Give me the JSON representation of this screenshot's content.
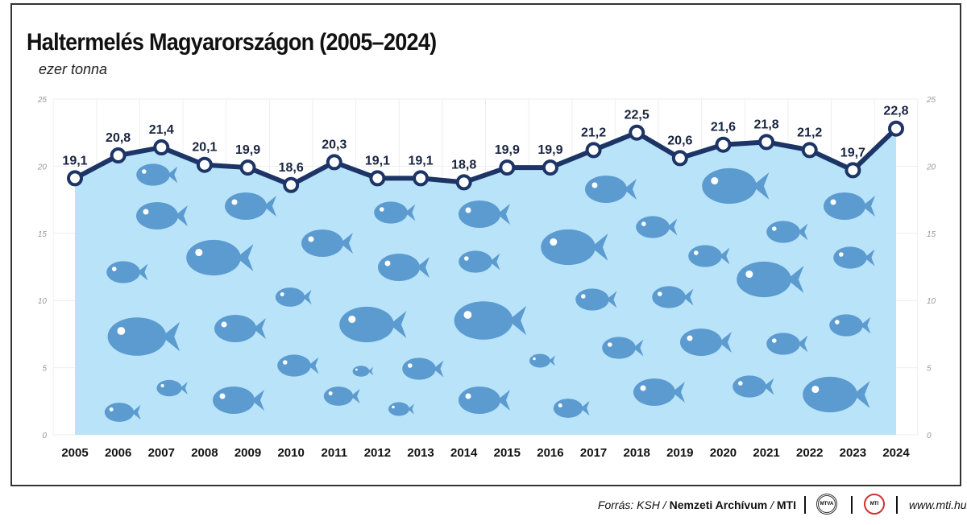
{
  "title": "Haltermelés Magyarországon (2005–2024)",
  "subtitle": "ezer tonna",
  "chart_data": {
    "type": "area",
    "title": "Haltermelés Magyarországon (2005–2024)",
    "ylabel": "ezer tonna",
    "categories": [
      "2005",
      "2006",
      "2007",
      "2008",
      "2009",
      "2010",
      "2011",
      "2012",
      "2013",
      "2014",
      "2015",
      "2016",
      "2017",
      "2018",
      "2019",
      "2020",
      "2021",
      "2022",
      "2023",
      "2024"
    ],
    "values": [
      19.1,
      20.8,
      21.4,
      20.1,
      19.9,
      18.6,
      20.3,
      19.1,
      19.1,
      18.8,
      19.9,
      19.9,
      21.2,
      22.5,
      20.6,
      21.6,
      21.8,
      21.2,
      19.7,
      22.8
    ],
    "data_labels": [
      "19,1",
      "20,8",
      "21,4",
      "20,1",
      "19,9",
      "18,6",
      "20,3",
      "19,1",
      "19,1",
      "18,8",
      "19,9",
      "19,9",
      "21,2",
      "22,5",
      "20,6",
      "21,6",
      "21,8",
      "21,2",
      "19,7",
      "22,8"
    ],
    "ylim": [
      0,
      25
    ],
    "yticks": [
      "0",
      "5",
      "10",
      "15",
      "20",
      "25"
    ],
    "grid": true,
    "colors": {
      "line": "#1c3566",
      "fill": "#b9e3f8",
      "fish": "#5b9bd0"
    }
  },
  "footer": {
    "source_prefix": "Forrás: KSH / ",
    "source_bold": "Nemzeti Archívum",
    "source_sep": " / ",
    "source_mti": "MTI",
    "logo1": "MTVA",
    "logo2": "MTI",
    "url": "www.mti.hu"
  }
}
